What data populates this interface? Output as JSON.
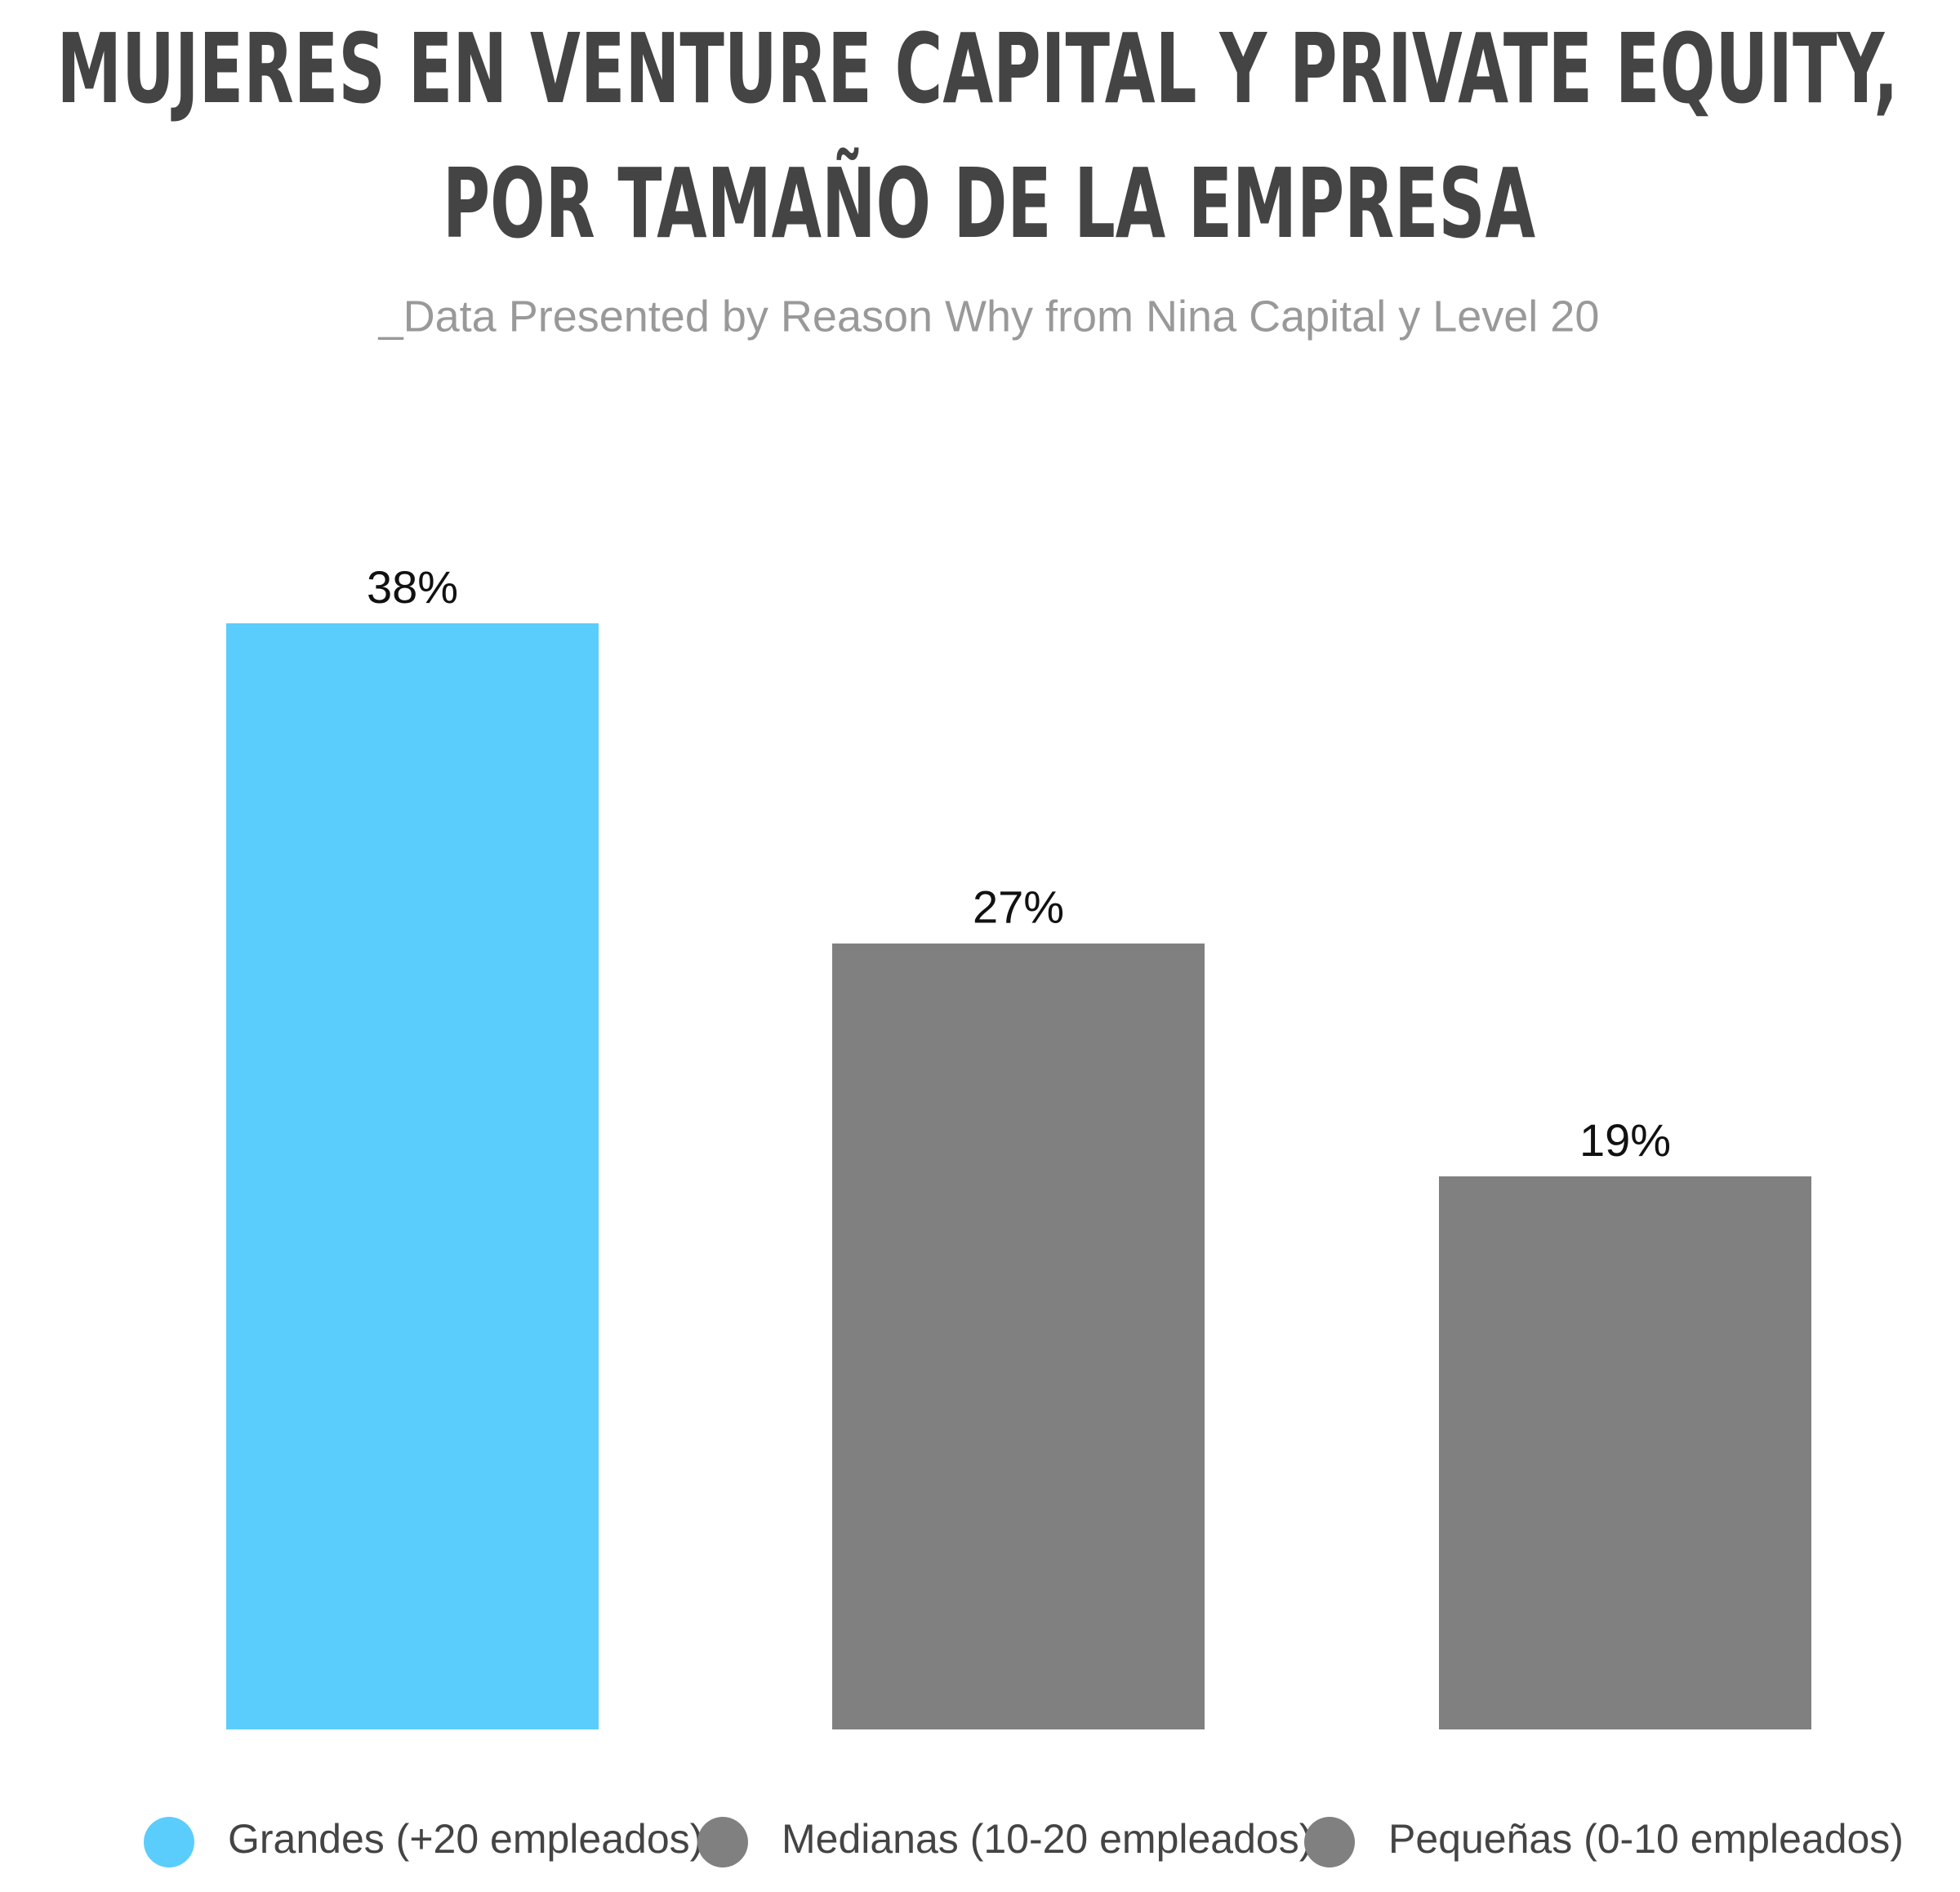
{
  "chart_data": {
    "type": "bar",
    "title": [
      "MUJERES EN VENTURE CAPITAL Y PRIVATE EQUITY,",
      "POR TAMAÑO DE LA EMPRESA"
    ],
    "subtitle": "_Data Presented by Reason Why from Nina Capital y Level 20",
    "categories": [
      "Grandes (+20 empleados)",
      "Medianas (10-20 empleados)",
      "Pequeñas (0-10 empleados)"
    ],
    "values": [
      38,
      27,
      19
    ],
    "value_labels": [
      "38%",
      "27%",
      "19%"
    ],
    "colors": [
      "#5bcdfc",
      "#808080",
      "#808080"
    ]
  }
}
